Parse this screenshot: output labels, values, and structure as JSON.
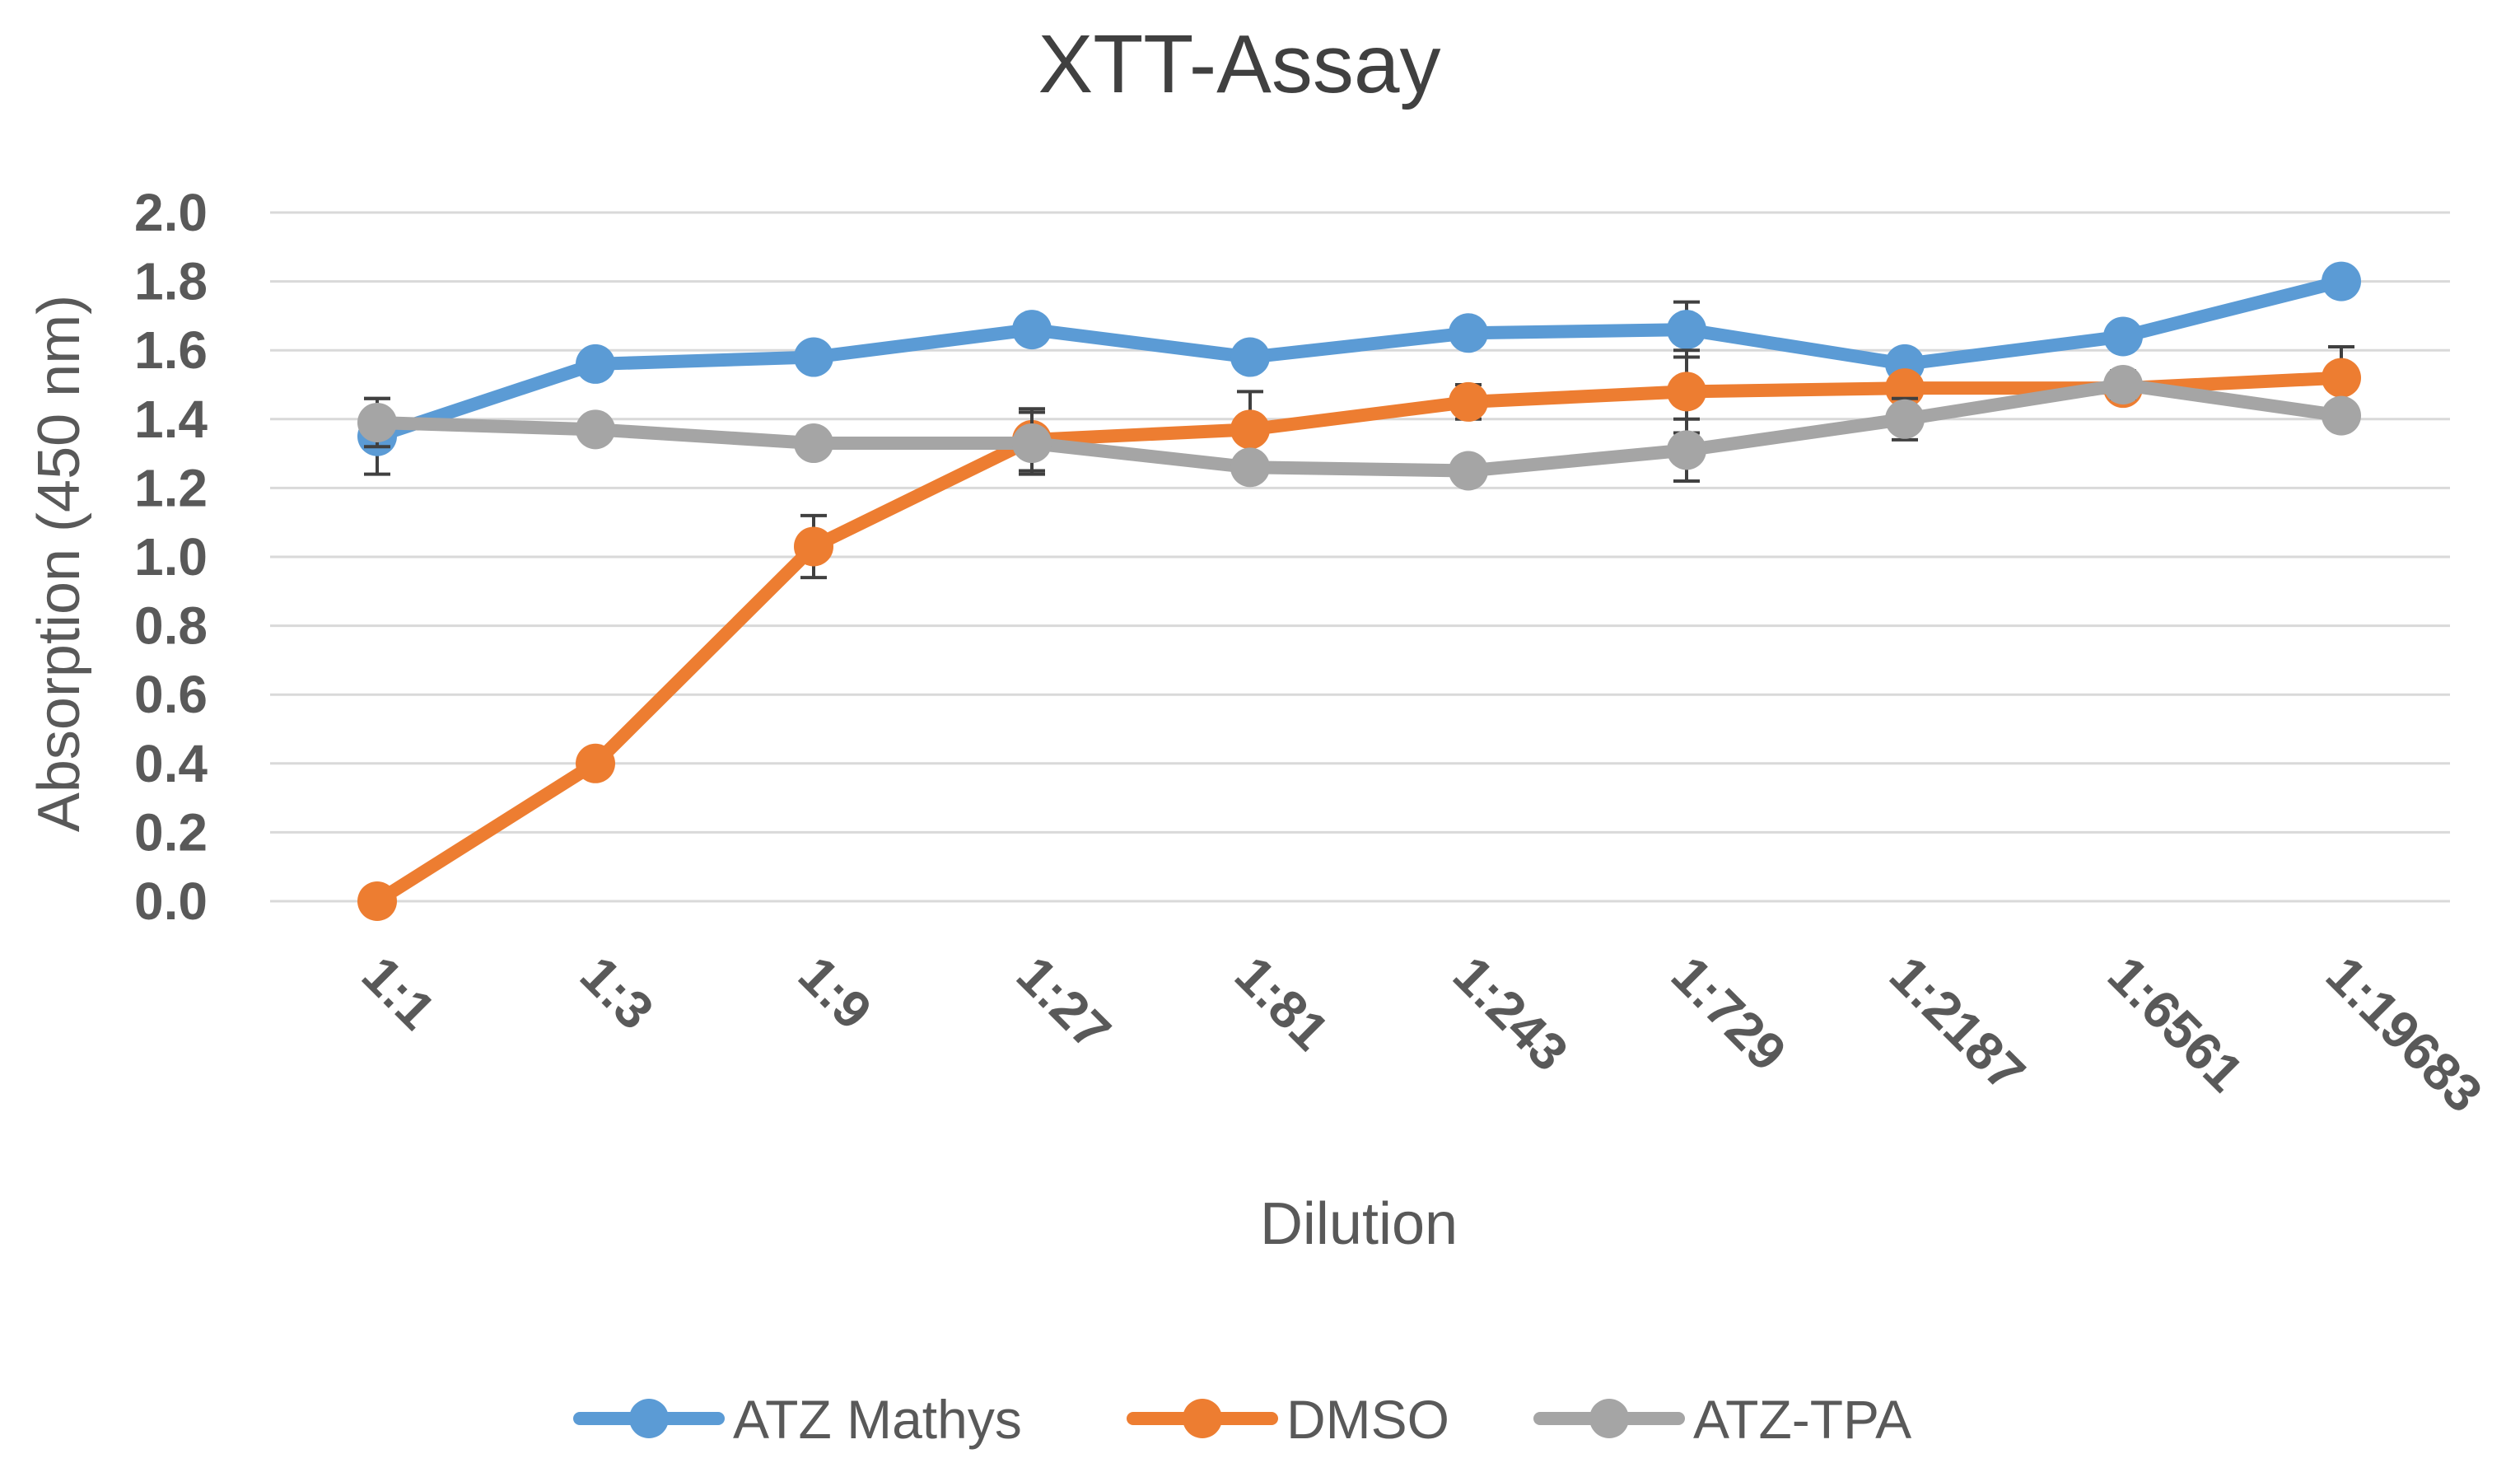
{
  "chart_data": {
    "type": "line",
    "title": "XTT-Assay",
    "xlabel": "Dilution",
    "ylabel": "Absorption (450 nm)",
    "ylim": [
      0,
      2.0
    ],
    "yticks": [
      "0.0",
      "0.2",
      "0.4",
      "0.6",
      "0.8",
      "1.0",
      "1.2",
      "1.4",
      "1.6",
      "1.8",
      "2.0"
    ],
    "ytick_values": [
      0,
      0.2,
      0.4,
      0.6,
      0.8,
      1.0,
      1.2,
      1.4,
      1.6,
      1.8,
      2.0
    ],
    "grid": true,
    "legend_position": "bottom-center",
    "categories": [
      "1:1",
      "1:3",
      "1:9",
      "1:27",
      "1:81",
      "1:243",
      "1:729",
      "1:2187",
      "1:6561",
      "1:19683"
    ],
    "series": [
      {
        "name": "ATZ Mathys",
        "color": "#5B9BD5",
        "values": [
          1.35,
          1.56,
          1.58,
          1.66,
          1.58,
          1.65,
          1.66,
          1.56,
          1.64,
          1.8
        ],
        "errors": [
          0.11,
          0.02,
          0.02,
          0.03,
          0.02,
          0.03,
          0.08,
          0.03,
          0.03,
          0.02
        ]
      },
      {
        "name": "DMSO",
        "color": "#ED7D31",
        "values": [
          0.0,
          0.4,
          1.03,
          1.34,
          1.37,
          1.45,
          1.48,
          1.49,
          1.49,
          1.52
        ],
        "errors": [
          0.0,
          0.02,
          0.09,
          0.09,
          0.11,
          0.05,
          0.12,
          0.03,
          0.02,
          0.09
        ]
      },
      {
        "name": "ATZ-TPA",
        "color": "#A5A5A5",
        "values": [
          1.39,
          1.37,
          1.33,
          1.33,
          1.26,
          1.25,
          1.31,
          1.4,
          1.5,
          1.41
        ],
        "errors": [
          0.07,
          0.02,
          0.02,
          0.09,
          0.03,
          0.02,
          0.09,
          0.06,
          0.04,
          0.02
        ]
      }
    ]
  }
}
